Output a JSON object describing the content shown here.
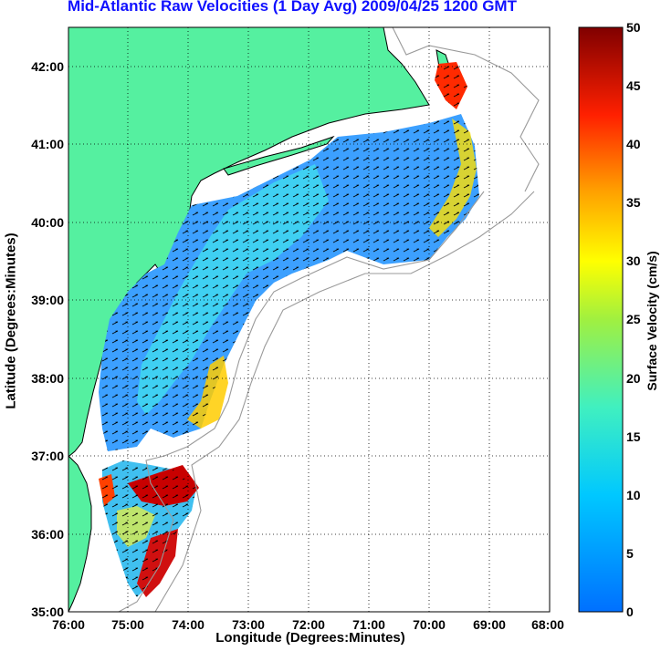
{
  "title": "Mid-Atlantic Raw Velocities (1 Day Avg) 2009/04/25 1200 GMT",
  "x_axis": {
    "label": "Longitude (Degrees:Minutes)",
    "ticks": [
      "76:00",
      "75:00",
      "74:00",
      "73:00",
      "72:00",
      "71:00",
      "70:00",
      "69:00",
      "68:00"
    ],
    "range": [
      -76,
      -68
    ]
  },
  "y_axis": {
    "label": "Latitude (Degrees:Minutes)",
    "ticks": [
      "35:00",
      "36:00",
      "37:00",
      "38:00",
      "39:00",
      "40:00",
      "41:00",
      "42:00"
    ],
    "range": [
      35,
      42.5
    ]
  },
  "colorbar": {
    "label": "Surface Velocity (cm/s)",
    "ticks": [
      "0",
      "5",
      "10",
      "15",
      "20",
      "25",
      "30",
      "35",
      "40",
      "45",
      "50"
    ],
    "range": [
      0,
      50
    ],
    "colormap": "jet"
  },
  "colors": {
    "title": "#1010ff",
    "land": "#55f0a0",
    "ocean": "#ffffff",
    "coast_line": "#000000",
    "bathymetry_contour": "#9a9a9a",
    "vector_arrows": "#000000"
  },
  "map": {
    "grid": "dotted",
    "features": [
      "land",
      "coastline",
      "bathymetry contours",
      "surface current velocity field",
      "velocity arrows"
    ]
  }
}
